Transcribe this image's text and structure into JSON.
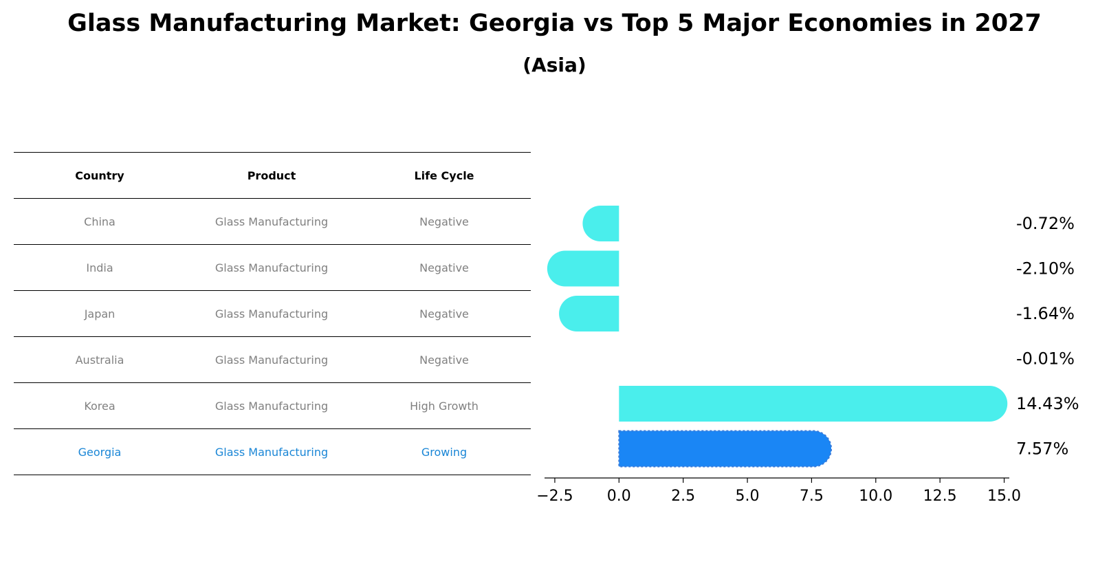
{
  "title": "Glass Manufacturing Market: Georgia vs Top 5 Major Economies in 2027",
  "subtitle": "(Asia)",
  "table": {
    "headers": [
      "Country",
      "Product",
      "Life Cycle"
    ],
    "rows": [
      {
        "country": "China",
        "product": "Glass Manufacturing",
        "life_cycle": "Negative",
        "highlight": false
      },
      {
        "country": "India",
        "product": "Glass Manufacturing",
        "life_cycle": "Negative",
        "highlight": false
      },
      {
        "country": "Japan",
        "product": "Glass Manufacturing",
        "life_cycle": "Negative",
        "highlight": false
      },
      {
        "country": "Australia",
        "product": "Glass Manufacturing",
        "life_cycle": "Negative",
        "highlight": false
      },
      {
        "country": "Korea",
        "product": "Glass Manufacturing",
        "life_cycle": "High Growth",
        "highlight": false
      },
      {
        "country": "Georgia",
        "product": "Glass Manufacturing",
        "life_cycle": "Growing",
        "highlight": true
      }
    ]
  },
  "chart_data": {
    "type": "bar",
    "orientation": "horizontal",
    "categories": [
      "China",
      "India",
      "Japan",
      "Australia",
      "Korea",
      "Georgia"
    ],
    "values": [
      -0.72,
      -2.1,
      -1.64,
      -0.01,
      14.43,
      7.57
    ],
    "value_labels": [
      "-0.72%",
      "-2.10%",
      "-1.64%",
      "-0.01%",
      "14.43%",
      "7.57%"
    ],
    "xlim": [
      -2.9,
      15.2
    ],
    "xticks": [
      -2.5,
      0.0,
      2.5,
      5.0,
      7.5,
      10.0,
      12.5,
      15.0
    ],
    "xtick_labels": [
      "−2.5",
      "0.0",
      "2.5",
      "5.0",
      "7.5",
      "10.0",
      "12.5",
      "15.0"
    ],
    "colors": {
      "default": "#4aeeec",
      "highlight": "#1a86f5"
    },
    "highlight_category": "Georgia",
    "grid": false
  }
}
